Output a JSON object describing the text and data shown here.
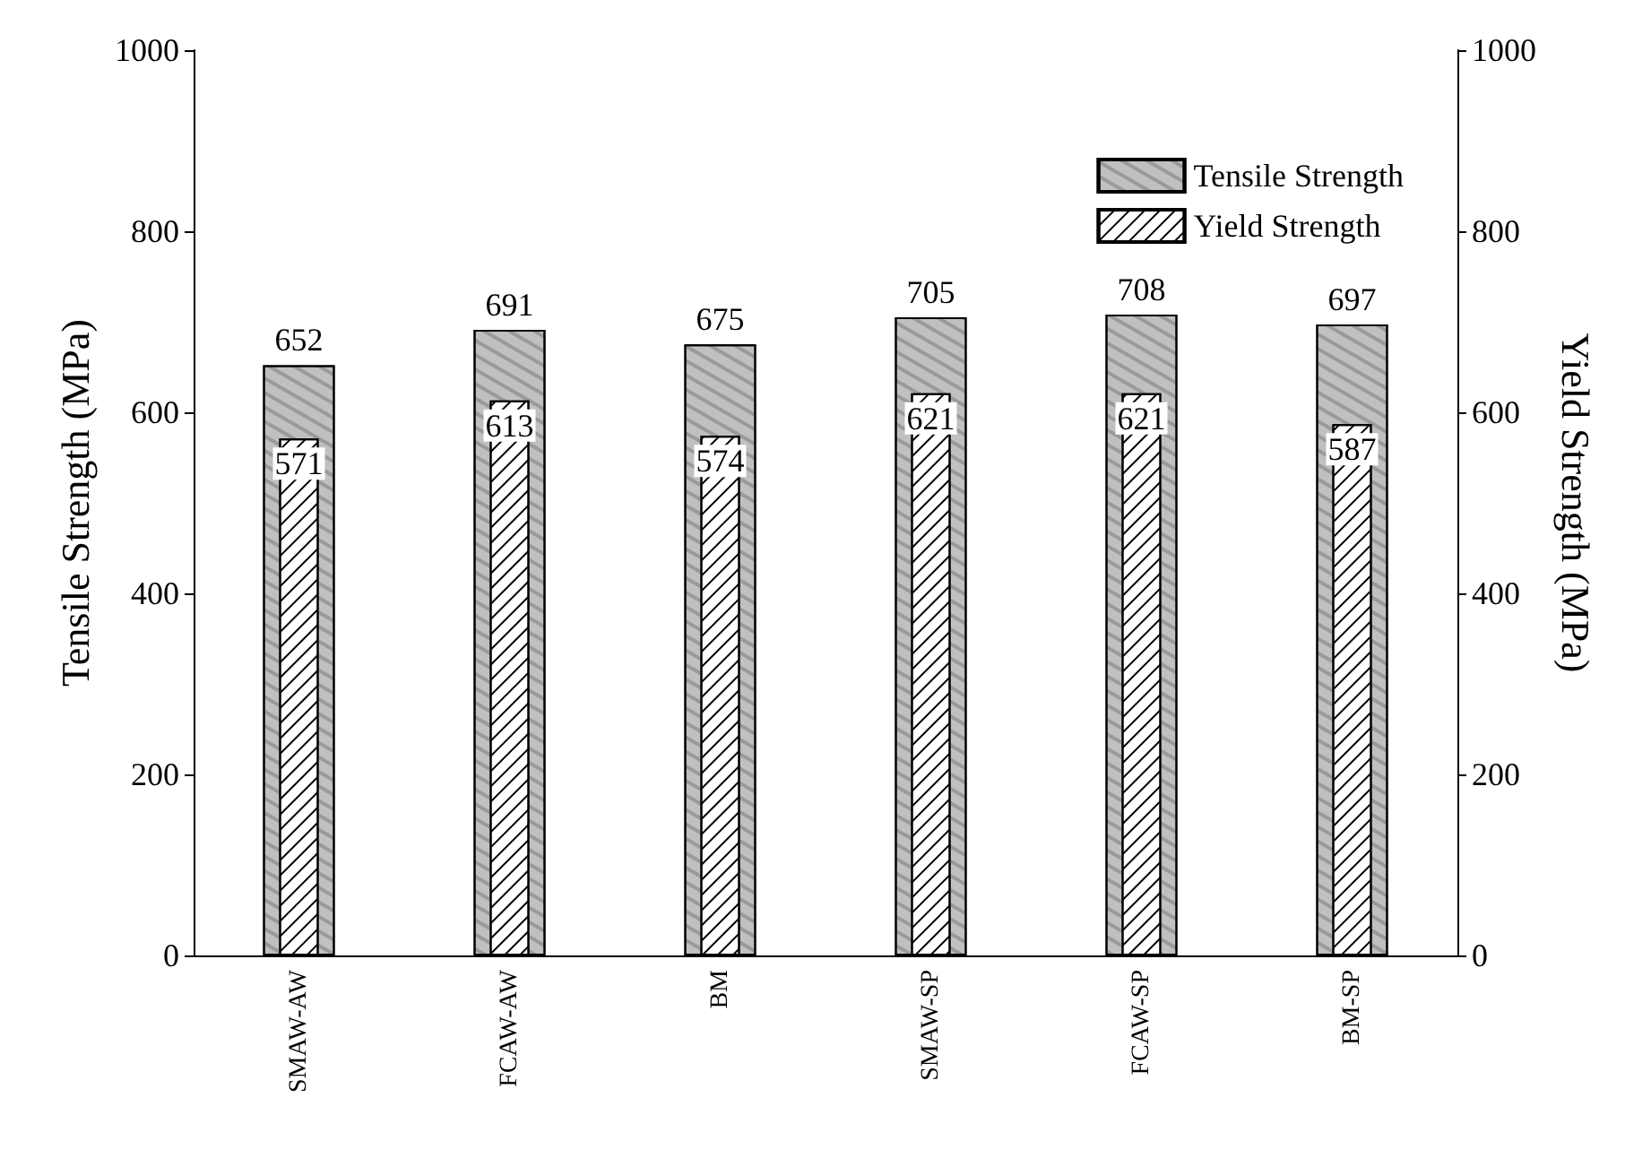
{
  "chart_data": {
    "type": "bar",
    "categories": [
      "SMAW-AW",
      "FCAW-AW",
      "BM",
      "SMAW-SP",
      "FCAW-SP",
      "BM-SP"
    ],
    "series": [
      {
        "name": "Tensile Strength",
        "color": "#c0c0c0",
        "values": [
          652,
          691,
          675,
          705,
          708,
          697
        ]
      },
      {
        "name": "Yield Strength",
        "color": "#ffffff",
        "axis": "y2",
        "values": [
          571,
          613,
          574,
          621,
          621,
          587
        ]
      }
    ],
    "ylabel": "Tensile Strength (MPa)",
    "y2label": "Yield Strength (MPa)",
    "ylim": [
      0,
      1000
    ],
    "yticks": [
      0,
      200,
      400,
      600,
      800,
      1000
    ],
    "y2lim": [
      0,
      1000
    ],
    "y2ticks": [
      0,
      200,
      400,
      600,
      800,
      1000
    ],
    "data_labels": true,
    "legend": "top right",
    "grid": false
  }
}
